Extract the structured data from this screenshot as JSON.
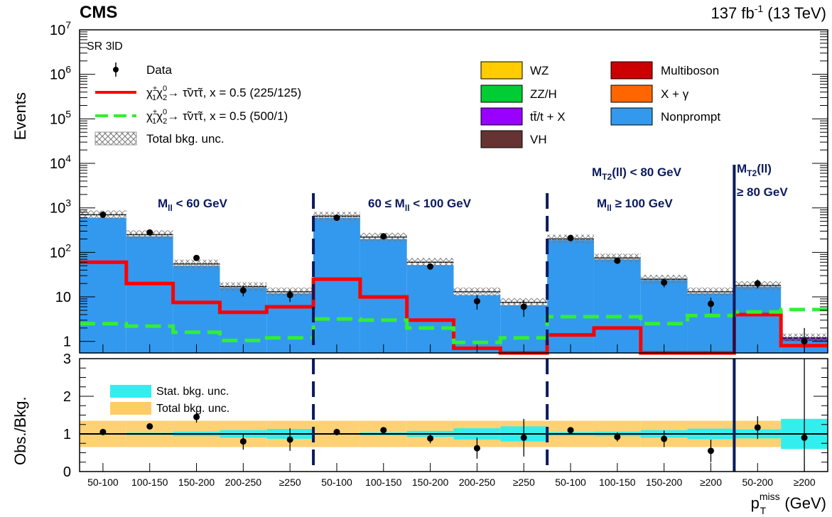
{
  "header": {
    "experiment": "CMS",
    "lumi": "137 fb",
    "lumi_sup": "-1",
    "energy": " (13 TeV)"
  },
  "top_panel": {
    "ylabel": "Events",
    "region_label": "SR 3lD",
    "y_ticks": [
      {
        "v": 1,
        "label": "1",
        "sup": ""
      },
      {
        "v": 10,
        "label": "10",
        "sup": ""
      },
      {
        "v": 100,
        "label": "10",
        "sup": "2"
      },
      {
        "v": 1000,
        "label": "10",
        "sup": "3"
      },
      {
        "v": 10000,
        "label": "10",
        "sup": "4"
      },
      {
        "v": 100000,
        "label": "10",
        "sup": "5"
      },
      {
        "v": 1000000,
        "label": "10",
        "sup": "6"
      },
      {
        "v": 10000000,
        "label": "10",
        "sup": "7"
      }
    ],
    "region_labels": {
      "r1": "M",
      "r1_sub": "ll",
      "r1_rest": " < 60 GeV",
      "r2_pre": "60 ≤ M",
      "r2_sub": "ll",
      "r2_rest": " < 100 GeV",
      "r3": "M",
      "r3_sub": "ll",
      "r3_rest": " ≥ 100 GeV",
      "r4a": "M",
      "r4a_sub": "T2",
      "r4a_rest": "(ll) < 80 GeV",
      "r4b": "M",
      "r4b_sub": "T2",
      "r4b_rest": "(ll)",
      "r4c": "≥ 80 GeV"
    },
    "legend_left": [
      {
        "label": "Data"
      },
      {
        "label": "χ",
        "label_rest": "→ τ̃ντ̃τ, x = 0.5 (225/125)"
      },
      {
        "label": "χ",
        "label_rest": "→ τ̃ντ̃τ, x = 0.5 (500/1)"
      },
      {
        "label": "Total bkg. unc."
      }
    ],
    "legend_right": [
      {
        "label": "WZ",
        "color": "#ffcc00"
      },
      {
        "label": "ZZ/H",
        "color": "#00cc33"
      },
      {
        "label": "tt̄/t + X",
        "color": "#9900ff"
      },
      {
        "label": "VH",
        "color": "#663333"
      },
      {
        "label": "Multiboson",
        "color": "#cc0000"
      },
      {
        "label": "X + γ",
        "color": "#ff6600"
      },
      {
        "label": "Nonprompt",
        "color": "#3399ee"
      }
    ]
  },
  "bottom_panel": {
    "ylabel": "Obs./Bkg.",
    "y_ticks": [
      "0",
      "1",
      "2",
      "3"
    ],
    "legend": [
      {
        "label": "Stat. bkg. unc.",
        "color": "#33eeee"
      },
      {
        "label": "Total bkg. unc.",
        "color": "#ffcc66"
      }
    ],
    "xlabel_main": "p",
    "xlabel_sup": "miss",
    "xlabel_sub": "T",
    "xlabel_unit": " (GeV)"
  },
  "colors": {
    "signal1": "#ff0000",
    "signal2": "#33ee33",
    "nonprompt": "#3399ee",
    "region_line": "#0a1a5c"
  },
  "chart_data": {
    "type": "bar",
    "stacked": true,
    "log_y": true,
    "ylim": [
      0.55,
      10000000
    ],
    "categories": [
      "50-100",
      "100-150",
      "150-200",
      "200-250",
      "≥250",
      "50-100",
      "100-150",
      "150-200",
      "200-250",
      "≥250",
      "50-100",
      "100-150",
      "150-200",
      "≥200",
      "50-200",
      "≥200"
    ],
    "series": [
      {
        "name": "Nonprompt",
        "values": [
          600,
          230,
          50,
          16,
          12,
          600,
          200,
          52,
          11,
          6.5,
          190,
          70,
          24,
          12,
          17,
          1.05
        ]
      },
      {
        "name": "tt̄/t + X",
        "values": [
          0,
          0,
          0,
          0,
          0,
          0,
          0,
          0,
          0,
          0,
          0,
          0,
          0,
          0,
          0,
          0.15
        ]
      },
      {
        "name": "χ1±χ20 → τ̃ντ̃τ, x = 0.5 (225/125)",
        "values": [
          60,
          20,
          7.5,
          4.5,
          6,
          25,
          10,
          3,
          0.7,
          0.55,
          1.4,
          2,
          0.55,
          0.55,
          4,
          0.8
        ]
      },
      {
        "name": "χ1±χ20 → τ̃ντ̃τ, x = 0.5 (500/1)",
        "values": [
          2.5,
          2.2,
          1.6,
          1.05,
          1.2,
          3.2,
          3.0,
          2.0,
          0.95,
          1.2,
          3.6,
          3.6,
          2.5,
          3.8,
          4.6,
          5.2
        ]
      },
      {
        "name": "Total bkg.",
        "values": [
          700,
          250,
          55,
          17,
          13,
          650,
          220,
          60,
          13,
          7.5,
          200,
          75,
          25,
          13,
          18,
          1.2
        ]
      },
      {
        "name": "Data",
        "values": [
          700,
          280,
          75,
          14,
          11,
          600,
          230,
          48,
          8,
          6,
          210,
          65,
          21,
          7,
          20,
          1
        ]
      }
    ],
    "ratio": {
      "values": [
        1.05,
        1.2,
        1.45,
        0.8,
        0.85,
        1.05,
        1.1,
        0.88,
        0.62,
        0.9,
        1.1,
        0.92,
        0.87,
        0.55,
        1.17,
        0.9
      ],
      "errors": [
        0.05,
        0.07,
        0.15,
        0.22,
        0.3,
        0.05,
        0.07,
        0.13,
        0.28,
        0.5,
        0.08,
        0.12,
        0.22,
        0.3,
        0.3,
        2.1
      ],
      "stat_unc": [
        0.02,
        0.03,
        0.06,
        0.1,
        0.13,
        0.02,
        0.04,
        0.08,
        0.15,
        0.2,
        0.05,
        0.06,
        0.1,
        0.14,
        0.12,
        0.4
      ],
      "total_unc": [
        0.35,
        0.35,
        0.35,
        0.35,
        0.35,
        0.35,
        0.35,
        0.35,
        0.35,
        0.35,
        0.35,
        0.35,
        0.35,
        0.35,
        0.35,
        0.4
      ],
      "ylim": [
        0,
        3
      ]
    }
  }
}
